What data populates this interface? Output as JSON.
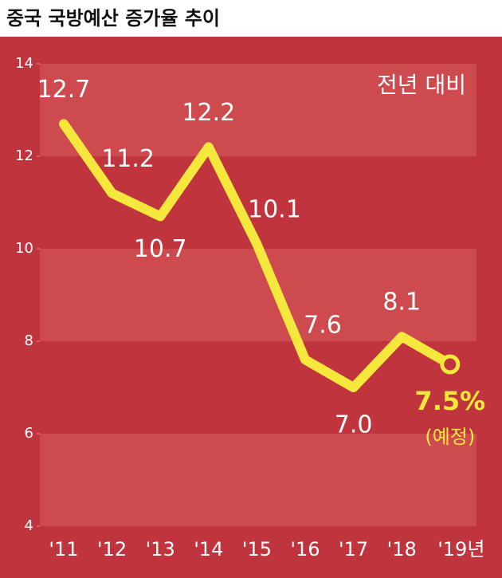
{
  "chart_data": {
    "type": "line",
    "title": "중국 국방예산 증가율 추이",
    "annotation": "전년 대비",
    "last_note": "(예정)",
    "categories": [
      "'11",
      "'12",
      "'13",
      "'14",
      "'15",
      "'16",
      "'17",
      "'18",
      "'19년"
    ],
    "values": [
      12.7,
      11.2,
      10.7,
      12.2,
      10.1,
      7.6,
      7.0,
      8.1,
      7.5
    ],
    "value_labels": [
      "12.7",
      "11.2",
      "10.7",
      "12.2",
      "10.1",
      "7.6",
      "7.0",
      "8.1",
      "7.5%"
    ],
    "color": "#f6e73c",
    "ylim": [
      4,
      14
    ],
    "yticks": [
      4,
      6,
      8,
      10,
      12,
      14
    ]
  }
}
